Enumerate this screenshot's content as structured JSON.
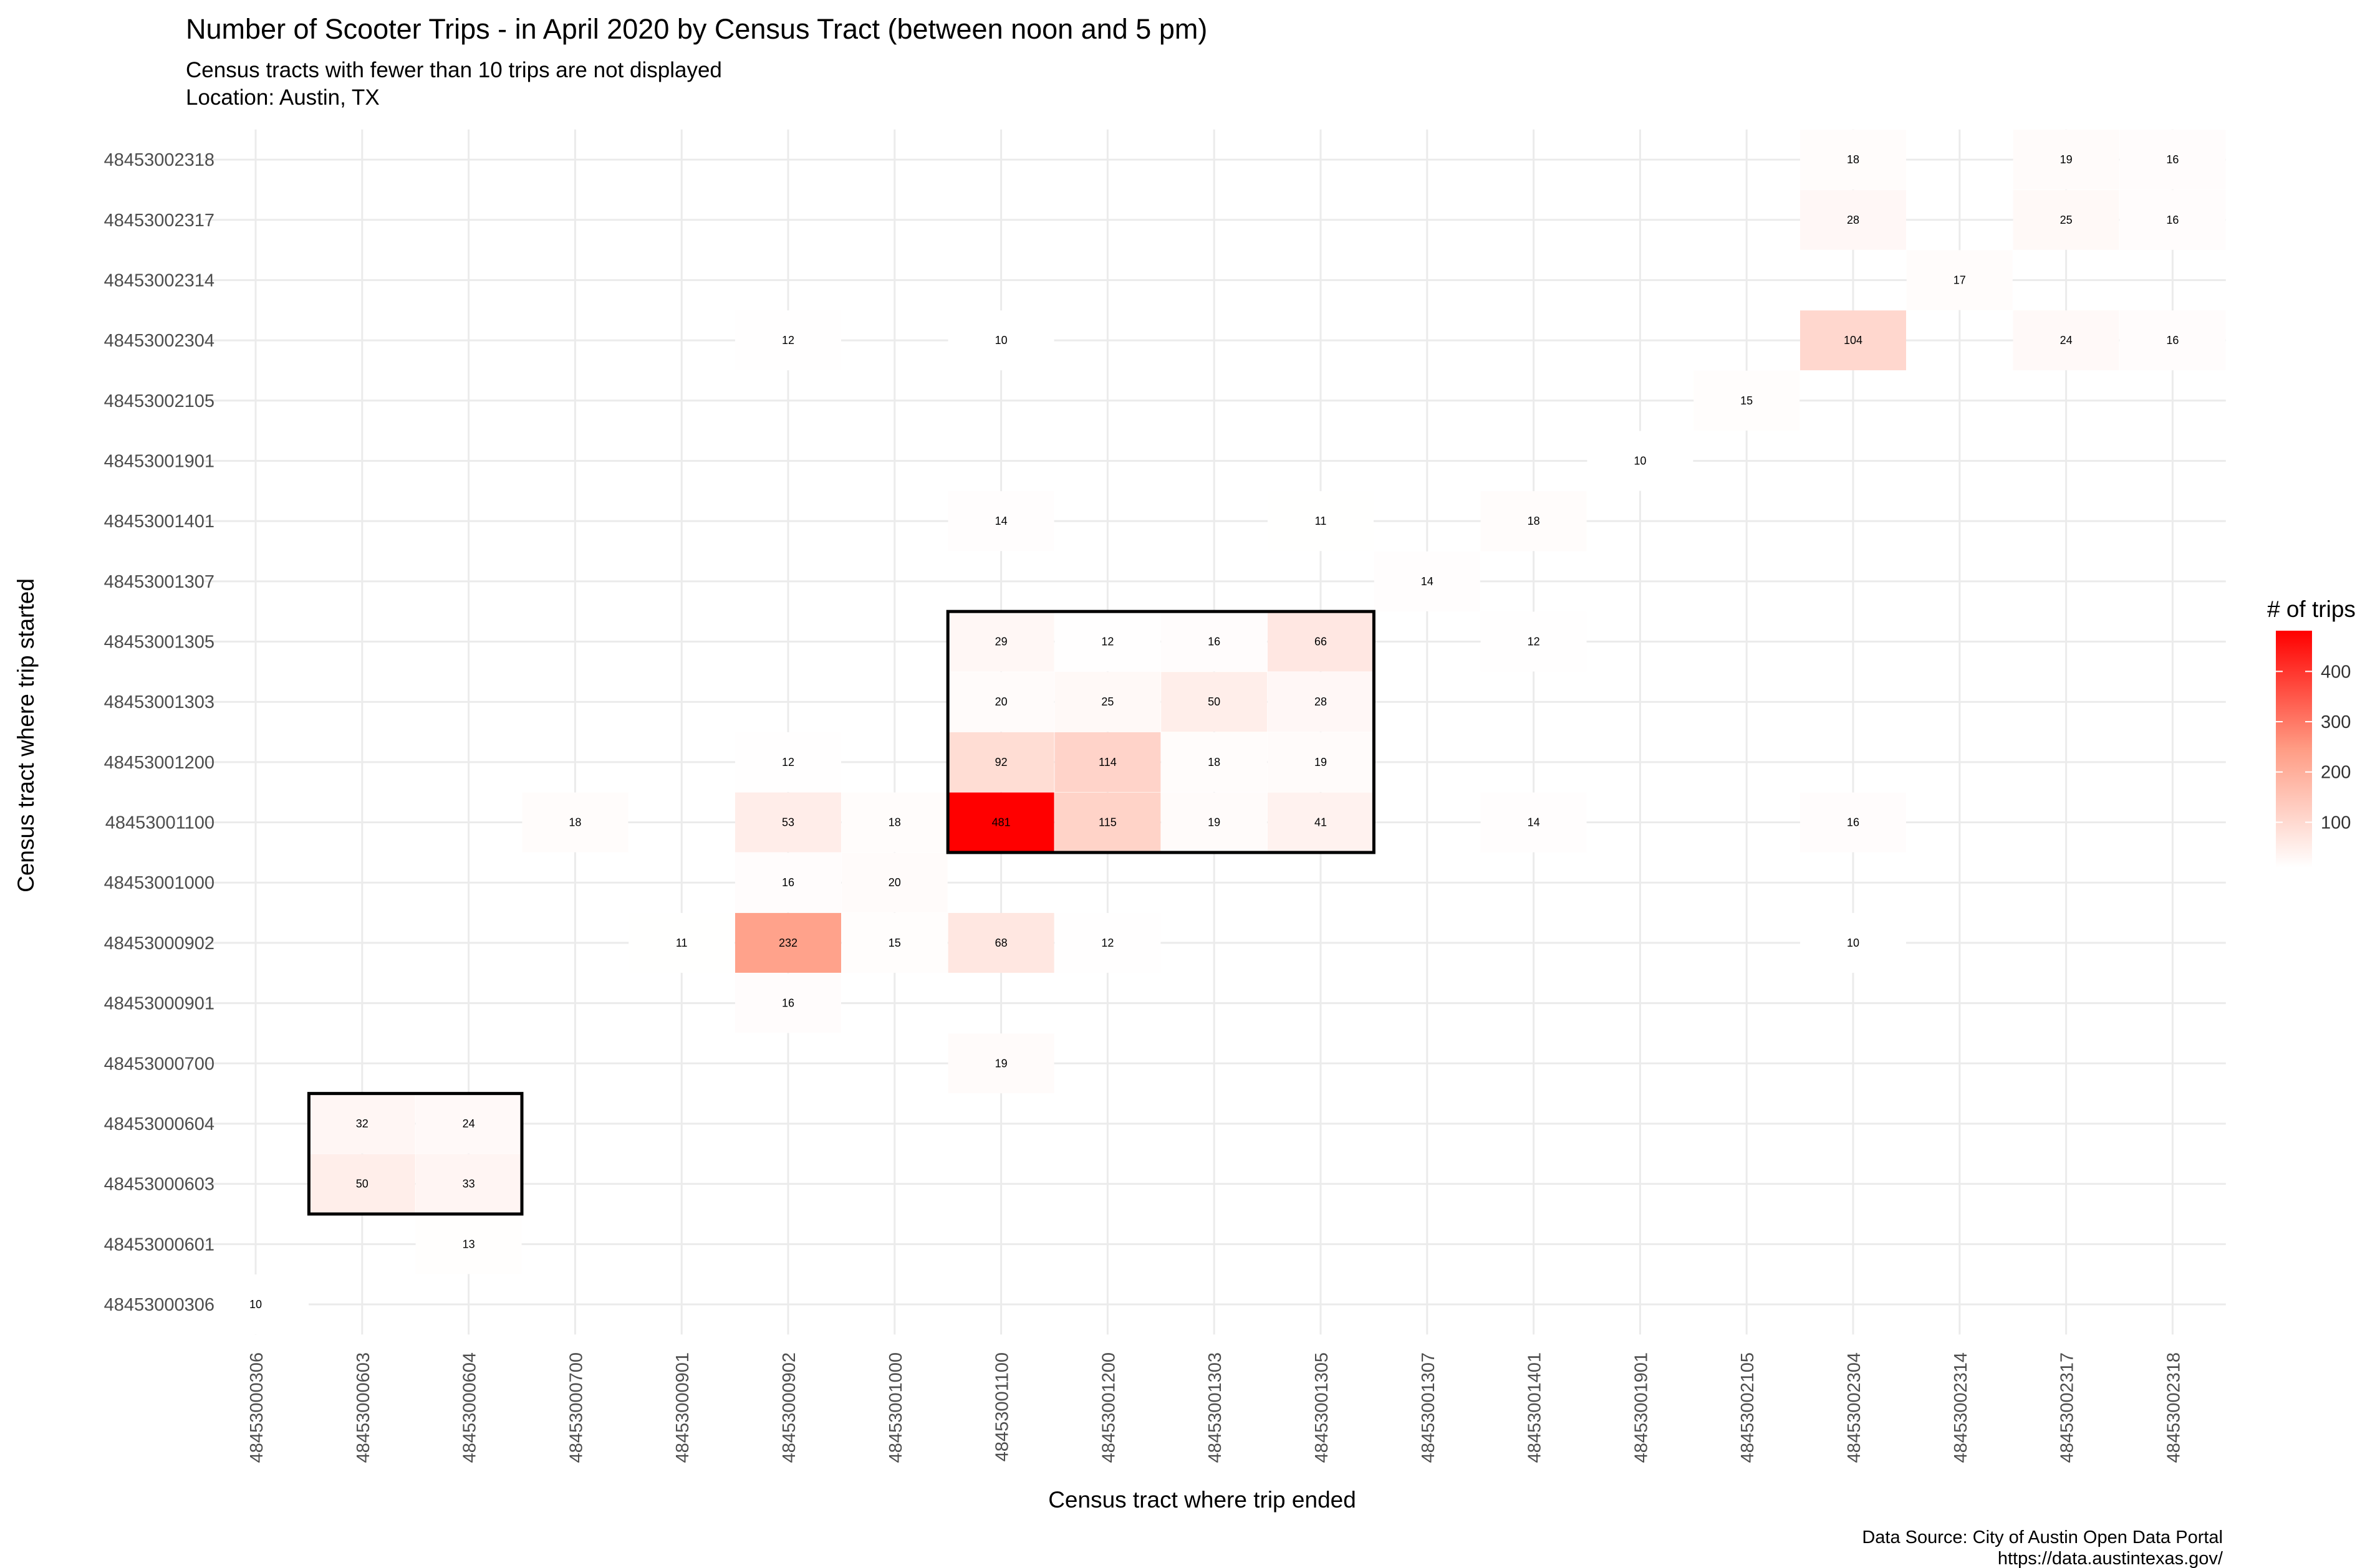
{
  "chart_data": {
    "type": "heatmap",
    "title": "Number of Scooter Trips - in April 2020 by Census Tract (between noon and 5 pm)",
    "subtitle_lines": [
      "Census tracts with fewer than 10 trips are not displayed",
      "Location: Austin, TX"
    ],
    "xlabel": "Census tract where trip ended",
    "ylabel": "Census tract where trip started",
    "x": [
      "48453000306",
      "48453000603",
      "48453000604",
      "48453000700",
      "48453000901",
      "48453000902",
      "48453001000",
      "48453001100",
      "48453001200",
      "48453001303",
      "48453001305",
      "48453001307",
      "48453001401",
      "48453001901",
      "48453002105",
      "48453002304",
      "48453002314",
      "48453002317",
      "48453002318"
    ],
    "y": [
      "48453000306",
      "48453000601",
      "48453000603",
      "48453000604",
      "48453000700",
      "48453000901",
      "48453000902",
      "48453001000",
      "48453001100",
      "48453001200",
      "48453001303",
      "48453001305",
      "48453001307",
      "48453001401",
      "48453001901",
      "48453002105",
      "48453002304",
      "48453002314",
      "48453002317",
      "48453002318"
    ],
    "cells": [
      {
        "x": "48453002304",
        "y": "48453002318",
        "value": 18
      },
      {
        "x": "48453002317",
        "y": "48453002318",
        "value": 19
      },
      {
        "x": "48453002318",
        "y": "48453002318",
        "value": 16
      },
      {
        "x": "48453002304",
        "y": "48453002317",
        "value": 28
      },
      {
        "x": "48453002317",
        "y": "48453002317",
        "value": 25
      },
      {
        "x": "48453002318",
        "y": "48453002317",
        "value": 16
      },
      {
        "x": "48453002314",
        "y": "48453002314",
        "value": 17
      },
      {
        "x": "48453000902",
        "y": "48453002304",
        "value": 12
      },
      {
        "x": "48453001100",
        "y": "48453002304",
        "value": 10
      },
      {
        "x": "48453002304",
        "y": "48453002304",
        "value": 104
      },
      {
        "x": "48453002317",
        "y": "48453002304",
        "value": 24
      },
      {
        "x": "48453002318",
        "y": "48453002304",
        "value": 16
      },
      {
        "x": "48453002105",
        "y": "48453002105",
        "value": 15
      },
      {
        "x": "48453001901",
        "y": "48453001901",
        "value": 10
      },
      {
        "x": "48453001100",
        "y": "48453001401",
        "value": 14
      },
      {
        "x": "48453001305",
        "y": "48453001401",
        "value": 11
      },
      {
        "x": "48453001401",
        "y": "48453001401",
        "value": 18
      },
      {
        "x": "48453001307",
        "y": "48453001307",
        "value": 14
      },
      {
        "x": "48453001100",
        "y": "48453001305",
        "value": 29
      },
      {
        "x": "48453001200",
        "y": "48453001305",
        "value": 12
      },
      {
        "x": "48453001303",
        "y": "48453001305",
        "value": 16
      },
      {
        "x": "48453001305",
        "y": "48453001305",
        "value": 66
      },
      {
        "x": "48453001401",
        "y": "48453001305",
        "value": 12
      },
      {
        "x": "48453001100",
        "y": "48453001303",
        "value": 20
      },
      {
        "x": "48453001200",
        "y": "48453001303",
        "value": 25
      },
      {
        "x": "48453001303",
        "y": "48453001303",
        "value": 50
      },
      {
        "x": "48453001305",
        "y": "48453001303",
        "value": 28
      },
      {
        "x": "48453000902",
        "y": "48453001200",
        "value": 12
      },
      {
        "x": "48453001100",
        "y": "48453001200",
        "value": 92
      },
      {
        "x": "48453001200",
        "y": "48453001200",
        "value": 114
      },
      {
        "x": "48453001303",
        "y": "48453001200",
        "value": 18
      },
      {
        "x": "48453001305",
        "y": "48453001200",
        "value": 19
      },
      {
        "x": "48453000700",
        "y": "48453001100",
        "value": 18
      },
      {
        "x": "48453000902",
        "y": "48453001100",
        "value": 53
      },
      {
        "x": "48453001000",
        "y": "48453001100",
        "value": 18
      },
      {
        "x": "48453001100",
        "y": "48453001100",
        "value": 481
      },
      {
        "x": "48453001200",
        "y": "48453001100",
        "value": 115
      },
      {
        "x": "48453001303",
        "y": "48453001100",
        "value": 19
      },
      {
        "x": "48453001305",
        "y": "48453001100",
        "value": 41
      },
      {
        "x": "48453001401",
        "y": "48453001100",
        "value": 14
      },
      {
        "x": "48453002304",
        "y": "48453001100",
        "value": 16
      },
      {
        "x": "48453000902",
        "y": "48453001000",
        "value": 16
      },
      {
        "x": "48453001000",
        "y": "48453001000",
        "value": 20
      },
      {
        "x": "48453000901",
        "y": "48453000902",
        "value": 11
      },
      {
        "x": "48453000902",
        "y": "48453000902",
        "value": 232
      },
      {
        "x": "48453001000",
        "y": "48453000902",
        "value": 15
      },
      {
        "x": "48453001100",
        "y": "48453000902",
        "value": 68
      },
      {
        "x": "48453001200",
        "y": "48453000902",
        "value": 12
      },
      {
        "x": "48453002304",
        "y": "48453000902",
        "value": 10
      },
      {
        "x": "48453000902",
        "y": "48453000901",
        "value": 16
      },
      {
        "x": "48453001100",
        "y": "48453000700",
        "value": 19
      },
      {
        "x": "48453000603",
        "y": "48453000604",
        "value": 32
      },
      {
        "x": "48453000604",
        "y": "48453000604",
        "value": 24
      },
      {
        "x": "48453000603",
        "y": "48453000603",
        "value": 50
      },
      {
        "x": "48453000604",
        "y": "48453000603",
        "value": 33
      },
      {
        "x": "48453000604",
        "y": "48453000601",
        "value": 13
      },
      {
        "x": "48453000306",
        "y": "48453000306",
        "value": 10
      }
    ],
    "highlight_boxes": [
      {
        "x_from": "48453001100",
        "x_to": "48453001305",
        "y_from": "48453001100",
        "y_to": "48453001305"
      },
      {
        "x_from": "48453000603",
        "x_to": "48453000604",
        "y_from": "48453000603",
        "y_to": "48453000604"
      }
    ],
    "legend": {
      "title": "# of trips",
      "position": "right",
      "ticks": [
        100,
        200,
        300,
        400
      ],
      "range": [
        10,
        481
      ],
      "low_color": "#ffffff",
      "high_color": "#ff0000"
    },
    "grid": true,
    "caption_lines": [
      "Data Source: City of Austin Open Data Portal",
      "https://data.austintexas.gov/"
    ]
  }
}
